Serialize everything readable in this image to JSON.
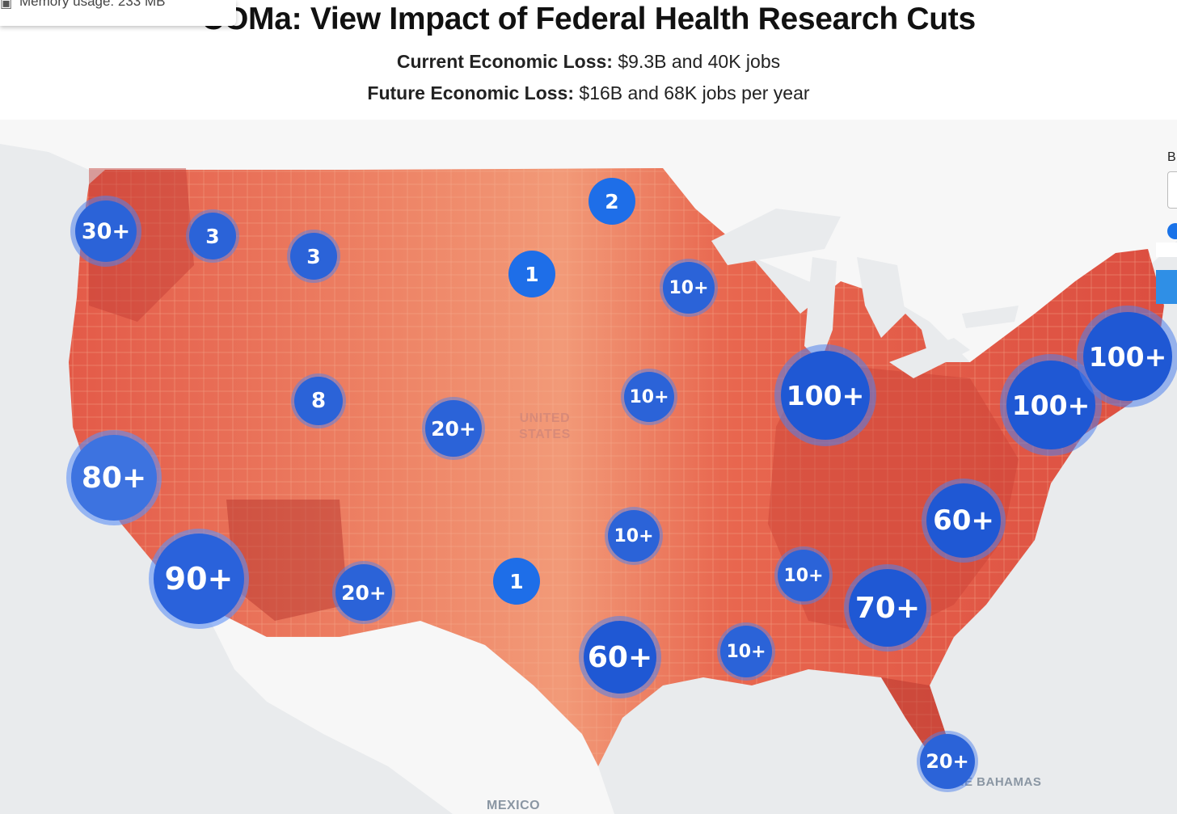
{
  "header": {
    "title_obscured": "COMa",
    "title_visible": ": View Impact of Federal Health Research Cuts",
    "current_label": "Current Economic Loss:",
    "current_value": "$9.3B and 40K jobs",
    "future_label": "Future Economic Loss:",
    "future_value": "$16B and 68K jobs per year"
  },
  "tooltip": {
    "icon": "memory-icon",
    "text": "Memory usage: 233 MB"
  },
  "map_labels": {
    "country_line1": "UNITED",
    "country_line2": "STATES",
    "mexico": "MEXICO",
    "bahamas": "THE BAHAMAS"
  },
  "side_controls": {
    "label": "B"
  },
  "colors": {
    "cluster_fill": "#1e5fd6",
    "cluster_halo": "#5a8ef0",
    "choropleth_light": "#f4a582",
    "choropleth_mid": "#e8634f",
    "choropleth_dark": "#b03030",
    "water": "#e9ebed",
    "neighbor_land": "#f7f7f7"
  },
  "clusters": [
    {
      "id": "pacific-nw",
      "label": "30+"
    },
    {
      "id": "eastern-washington",
      "label": "3"
    },
    {
      "id": "montana",
      "label": "3"
    },
    {
      "id": "north-dakota",
      "label": "2"
    },
    {
      "id": "south-dakota",
      "label": "1"
    },
    {
      "id": "minnesota",
      "label": "10+"
    },
    {
      "id": "utah",
      "label": "8"
    },
    {
      "id": "colorado",
      "label": "20+"
    },
    {
      "id": "missouri",
      "label": "10+"
    },
    {
      "id": "great-lakes",
      "label": "100+"
    },
    {
      "id": "mid-atlantic",
      "label": "100+"
    },
    {
      "id": "new-england",
      "label": "100+"
    },
    {
      "id": "northern-california",
      "label": "80+"
    },
    {
      "id": "southern-california",
      "label": "90+"
    },
    {
      "id": "new-mexico",
      "label": "20+"
    },
    {
      "id": "west-texas",
      "label": "1"
    },
    {
      "id": "oklahoma",
      "label": "10+"
    },
    {
      "id": "north-carolina",
      "label": "60+"
    },
    {
      "id": "alabama",
      "label": "10+"
    },
    {
      "id": "georgia",
      "label": "70+"
    },
    {
      "id": "texas-gulf",
      "label": "60+"
    },
    {
      "id": "louisiana",
      "label": "10+"
    },
    {
      "id": "south-florida",
      "label": "20+"
    }
  ]
}
